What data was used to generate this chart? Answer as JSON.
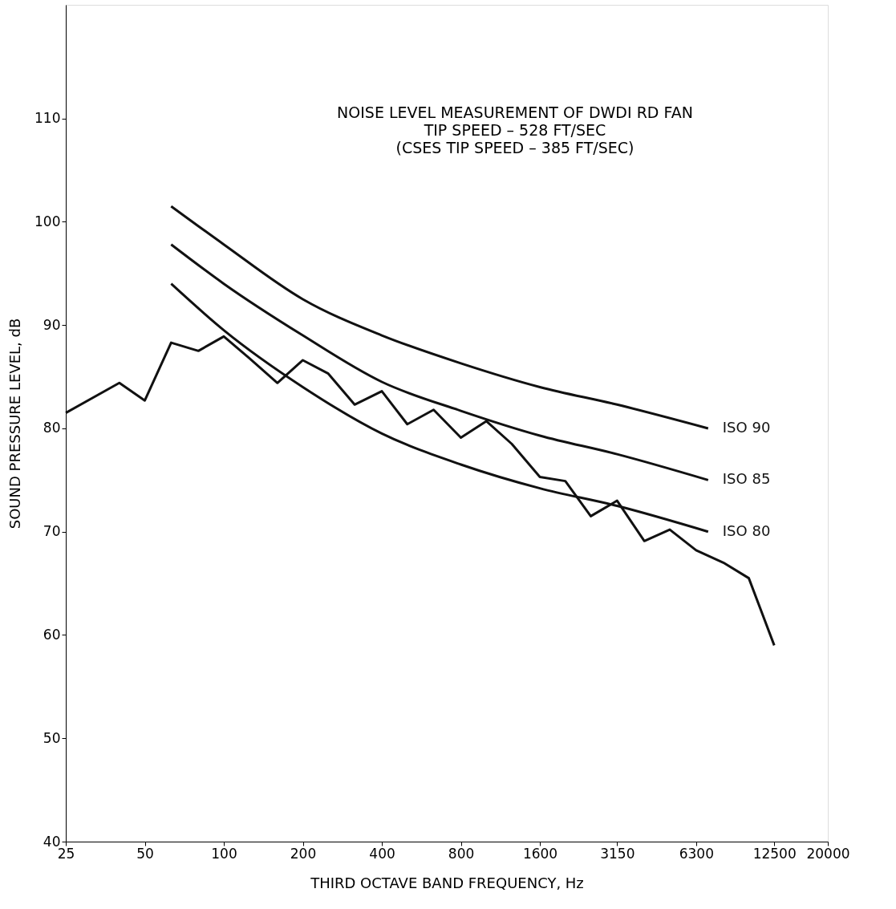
{
  "chart_data": {
    "type": "line",
    "title": "NOISE LEVEL MEASUREMENT OF DWDI RD FAN",
    "subtitle": "TIP SPEED – 528 FT/SEC\n(CSES TIP SPEED – 385 FT/SEC)",
    "xlabel": "THIRD OCTAVE BAND FREQUENCY, Hz",
    "ylabel": "SOUND PRESSURE LEVEL, dB",
    "log": "x",
    "xlim": [
      25,
      20000
    ],
    "xticks": [
      25,
      50,
      100,
      200,
      400,
      800,
      1600,
      3150,
      6300,
      12500,
      20000
    ],
    "ylim": [
      40,
      121
    ],
    "yticks": [
      40,
      50,
      60,
      70,
      80,
      90,
      100,
      110
    ],
    "grid": false,
    "marker": "none",
    "line_style": "solid",
    "series": [
      {
        "color": "#111111",
        "x": [
          25,
          40,
          50,
          63,
          80,
          100,
          125,
          160,
          200,
          250,
          315,
          400,
          500,
          630,
          800,
          1000,
          1250,
          1600,
          2000,
          2500,
          3150,
          4000,
          5000,
          6300,
          8000,
          10000,
          12500
        ],
        "values": [
          81.5,
          84.4,
          82.7,
          88.3,
          87.5,
          88.9,
          86.8,
          84.4,
          86.6,
          85.3,
          82.3,
          83.6,
          80.4,
          81.8,
          79.1,
          80.7,
          78.5,
          75.3,
          74.9,
          71.5,
          73.0,
          69.1,
          70.2,
          68.2,
          67.0,
          65.5,
          59.0
        ]
      },
      {
        "name": "ISO 90",
        "color": "#111111",
        "x": [
          63,
          100,
          200,
          400,
          800,
          1600,
          3150,
          7000
        ],
        "values": [
          101.5,
          97.8,
          92.5,
          89.0,
          86.3,
          84.0,
          82.3,
          80.0
        ]
      },
      {
        "name": "ISO 85",
        "color": "#111111",
        "x": [
          63,
          100,
          200,
          400,
          800,
          1600,
          3150,
          7000
        ],
        "values": [
          97.8,
          94.0,
          89.0,
          84.5,
          81.7,
          79.3,
          77.5,
          75.0
        ]
      },
      {
        "name": "ISO 80",
        "color": "#111111",
        "x": [
          63,
          100,
          200,
          400,
          800,
          1600,
          3150,
          7000
        ],
        "values": [
          94.0,
          89.5,
          84.0,
          79.5,
          76.5,
          74.2,
          72.5,
          70.0
        ]
      }
    ]
  }
}
